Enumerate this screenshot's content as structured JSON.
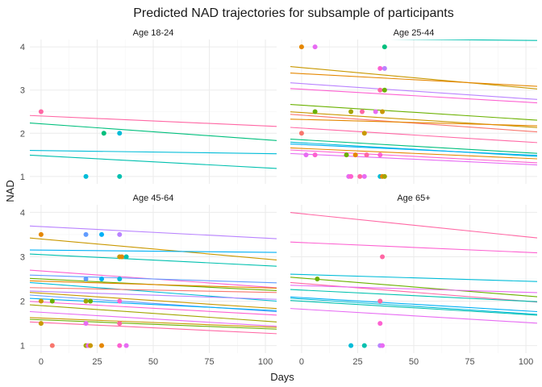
{
  "chart_data": {
    "type": "scatter",
    "title": "Predicted NAD trajectories for subsample of participants",
    "xlabel": "Days",
    "ylabel": "NAD",
    "xlim": [
      -5,
      105
    ],
    "ylim": [
      0.83,
      4.17
    ],
    "x_ticks": [
      0,
      25,
      50,
      75,
      100
    ],
    "y_ticks": [
      1,
      2,
      3,
      4
    ],
    "grid": true,
    "legend": "none",
    "palette": [
      "#F8766D",
      "#E58700",
      "#C99800",
      "#A3A500",
      "#6BB100",
      "#00BA38",
      "#00BF7D",
      "#00C0AF",
      "#00BCD8",
      "#00B0F6",
      "#619CFF",
      "#B983FF",
      "#E76BF3",
      "#FD61D1",
      "#FF67A4"
    ],
    "facets": [
      {
        "label": "Age 18-24",
        "lines": [
          {
            "color": "#FF67A4",
            "y0": 2.4,
            "y1": 2.17
          },
          {
            "color": "#00BF7D",
            "y0": 2.22,
            "y1": 1.85
          },
          {
            "color": "#00BCD8",
            "y0": 1.6,
            "y1": 1.53
          },
          {
            "color": "#00C0AF",
            "y0": 1.48,
            "y1": 1.2
          }
        ],
        "points": [
          {
            "x": 0,
            "y": 2.5,
            "color": "#FF67A4"
          },
          {
            "x": 28,
            "y": 2.0,
            "color": "#00BF7D"
          },
          {
            "x": 35,
            "y": 2.0,
            "color": "#00BCD8"
          },
          {
            "x": 20,
            "y": 1.0,
            "color": "#00BCD8"
          },
          {
            "x": 35,
            "y": 1.0,
            "color": "#00C0AF"
          }
        ]
      },
      {
        "label": "Age 25-44",
        "lines": [
          {
            "color": "#00C0AF",
            "y0": 4.2,
            "y1": 4.15
          },
          {
            "color": "#C99800",
            "y0": 3.52,
            "y1": 3.05
          },
          {
            "color": "#E58700",
            "y0": 3.38,
            "y1": 3.1
          },
          {
            "color": "#B983FF",
            "y0": 3.15,
            "y1": 2.8
          },
          {
            "color": "#FD61D1",
            "y0": 3.02,
            "y1": 2.72
          },
          {
            "color": "#6BB100",
            "y0": 2.65,
            "y1": 2.32
          },
          {
            "color": "#C99800",
            "y0": 2.48,
            "y1": 2.15
          },
          {
            "color": "#F8766D",
            "y0": 2.42,
            "y1": 2.05
          },
          {
            "color": "#E58700",
            "y0": 2.32,
            "y1": 2.18
          },
          {
            "color": "#FF67A4",
            "y0": 2.12,
            "y1": 1.8
          },
          {
            "color": "#00BF7D",
            "y0": 1.85,
            "y1": 1.55
          },
          {
            "color": "#00BCD8",
            "y0": 1.78,
            "y1": 1.48
          },
          {
            "color": "#00B0F6",
            "y0": 1.74,
            "y1": 1.5
          },
          {
            "color": "#E58700",
            "y0": 1.65,
            "y1": 1.42
          },
          {
            "color": "#FD61D1",
            "y0": 1.6,
            "y1": 1.33
          },
          {
            "color": "#E76BF3",
            "y0": 1.52,
            "y1": 1.28
          }
        ],
        "points": [
          {
            "x": 0,
            "y": 4.0,
            "color": "#E58700"
          },
          {
            "x": 6,
            "y": 4.0,
            "color": "#E76BF3"
          },
          {
            "x": 37,
            "y": 4.0,
            "color": "#00BF7D"
          },
          {
            "x": 35,
            "y": 3.5,
            "color": "#FD61D1"
          },
          {
            "x": 37,
            "y": 3.5,
            "color": "#B983FF"
          },
          {
            "x": 35,
            "y": 3.0,
            "color": "#FF67A4"
          },
          {
            "x": 37,
            "y": 3.0,
            "color": "#6BB100"
          },
          {
            "x": 6,
            "y": 2.5,
            "color": "#6BB100"
          },
          {
            "x": 22,
            "y": 2.5,
            "color": "#A3A500"
          },
          {
            "x": 27,
            "y": 2.5,
            "color": "#FF67A4"
          },
          {
            "x": 33,
            "y": 2.5,
            "color": "#E76BF3"
          },
          {
            "x": 36,
            "y": 2.5,
            "color": "#C99800"
          },
          {
            "x": 0,
            "y": 2.0,
            "color": "#F8766D"
          },
          {
            "x": 28,
            "y": 2.0,
            "color": "#C99800"
          },
          {
            "x": 2,
            "y": 1.5,
            "color": "#E76BF3"
          },
          {
            "x": 6,
            "y": 1.5,
            "color": "#FD61D1"
          },
          {
            "x": 20,
            "y": 1.5,
            "color": "#6BB100"
          },
          {
            "x": 24,
            "y": 1.5,
            "color": "#E58700"
          },
          {
            "x": 29,
            "y": 1.5,
            "color": "#FF67A4"
          },
          {
            "x": 35,
            "y": 1.5,
            "color": "#FD61D1"
          },
          {
            "x": 21,
            "y": 1.0,
            "color": "#E76BF3"
          },
          {
            "x": 22,
            "y": 1.0,
            "color": "#FD61D1"
          },
          {
            "x": 26,
            "y": 1.0,
            "color": "#FF67A4"
          },
          {
            "x": 28,
            "y": 1.0,
            "color": "#E76BF3"
          },
          {
            "x": 35,
            "y": 1.0,
            "color": "#00BCD8"
          },
          {
            "x": 36,
            "y": 1.0,
            "color": "#E58700"
          },
          {
            "x": 37,
            "y": 1.0,
            "color": "#A3A500"
          }
        ]
      },
      {
        "label": "Age 45-64",
        "lines": [
          {
            "color": "#B983FF",
            "y0": 3.68,
            "y1": 3.42
          },
          {
            "color": "#C99800",
            "y0": 3.4,
            "y1": 2.95
          },
          {
            "color": "#00B0F6",
            "y0": 3.15,
            "y1": 3.1
          },
          {
            "color": "#00C0AF",
            "y0": 3.05,
            "y1": 2.8
          },
          {
            "color": "#FD61D1",
            "y0": 2.68,
            "y1": 2.32
          },
          {
            "color": "#619CFF",
            "y0": 2.58,
            "y1": 2.42
          },
          {
            "color": "#6BB100",
            "y0": 2.5,
            "y1": 2.25
          },
          {
            "color": "#E58700",
            "y0": 2.45,
            "y1": 2.3
          },
          {
            "color": "#00BCD8",
            "y0": 2.4,
            "y1": 2.02
          },
          {
            "color": "#F8766D",
            "y0": 2.3,
            "y1": 2.2
          },
          {
            "color": "#B983FF",
            "y0": 2.22,
            "y1": 2.05
          },
          {
            "color": "#C99800",
            "y0": 2.18,
            "y1": 1.85
          },
          {
            "color": "#619CFF",
            "y0": 2.12,
            "y1": 1.78
          },
          {
            "color": "#00B0F6",
            "y0": 2.05,
            "y1": 1.8
          },
          {
            "color": "#FD61D1",
            "y0": 1.98,
            "y1": 1.7
          },
          {
            "color": "#A3A500",
            "y0": 1.9,
            "y1": 1.55
          },
          {
            "color": "#E76BF3",
            "y0": 1.75,
            "y1": 1.45
          },
          {
            "color": "#C99800",
            "y0": 1.62,
            "y1": 1.42
          },
          {
            "color": "#6BB100",
            "y0": 1.58,
            "y1": 1.38
          },
          {
            "color": "#FF67A4",
            "y0": 1.52,
            "y1": 1.28
          }
        ],
        "points": [
          {
            "x": 0,
            "y": 3.5,
            "color": "#E58700"
          },
          {
            "x": 20,
            "y": 3.5,
            "color": "#619CFF"
          },
          {
            "x": 27,
            "y": 3.5,
            "color": "#00B0F6"
          },
          {
            "x": 35,
            "y": 3.5,
            "color": "#B983FF"
          },
          {
            "x": 35,
            "y": 3.0,
            "color": "#C99800"
          },
          {
            "x": 36,
            "y": 3.0,
            "color": "#E58700"
          },
          {
            "x": 38,
            "y": 3.0,
            "color": "#00C0AF"
          },
          {
            "x": 20,
            "y": 2.5,
            "color": "#619CFF"
          },
          {
            "x": 27,
            "y": 2.5,
            "color": "#00B0F6"
          },
          {
            "x": 35,
            "y": 2.5,
            "color": "#00BCD8"
          },
          {
            "x": 0,
            "y": 2.0,
            "color": "#C99800"
          },
          {
            "x": 5,
            "y": 2.0,
            "color": "#6BB100"
          },
          {
            "x": 20,
            "y": 2.0,
            "color": "#A3A500"
          },
          {
            "x": 22,
            "y": 2.0,
            "color": "#6BB100"
          },
          {
            "x": 35,
            "y": 2.0,
            "color": "#FD61D1"
          },
          {
            "x": 0,
            "y": 1.5,
            "color": "#C99800"
          },
          {
            "x": 20,
            "y": 1.5,
            "color": "#E76BF3"
          },
          {
            "x": 35,
            "y": 1.5,
            "color": "#FF67A4"
          },
          {
            "x": 5,
            "y": 1.0,
            "color": "#F8766D"
          },
          {
            "x": 20,
            "y": 1.0,
            "color": "#A3A500"
          },
          {
            "x": 21,
            "y": 1.0,
            "color": "#E76BF3"
          },
          {
            "x": 22,
            "y": 1.0,
            "color": "#C99800"
          },
          {
            "x": 27,
            "y": 1.0,
            "color": "#E58700"
          },
          {
            "x": 35,
            "y": 1.0,
            "color": "#FD61D1"
          },
          {
            "x": 38,
            "y": 1.0,
            "color": "#E76BF3"
          }
        ]
      },
      {
        "label": "Age 65+",
        "lines": [
          {
            "color": "#FF67A4",
            "y0": 3.97,
            "y1": 3.45
          },
          {
            "color": "#FD61D1",
            "y0": 3.32,
            "y1": 3.1
          },
          {
            "color": "#00BCD8",
            "y0": 2.6,
            "y1": 2.45
          },
          {
            "color": "#6BB100",
            "y0": 2.52,
            "y1": 2.12
          },
          {
            "color": "#FF67A4",
            "y0": 2.4,
            "y1": 2.0
          },
          {
            "color": "#E76BF3",
            "y0": 2.35,
            "y1": 2.2
          },
          {
            "color": "#00C0AF",
            "y0": 2.25,
            "y1": 2.0
          },
          {
            "color": "#00B0F6",
            "y0": 2.08,
            "y1": 1.78
          },
          {
            "color": "#00BCD8",
            "y0": 2.05,
            "y1": 1.72
          },
          {
            "color": "#00C0AF",
            "y0": 2.0,
            "y1": 1.7
          },
          {
            "color": "#E76BF3",
            "y0": 1.82,
            "y1": 1.52
          }
        ],
        "points": [
          {
            "x": 36,
            "y": 3.0,
            "color": "#FF67A4"
          },
          {
            "x": 7,
            "y": 2.5,
            "color": "#6BB100"
          },
          {
            "x": 35,
            "y": 2.0,
            "color": "#FF67A4"
          },
          {
            "x": 35,
            "y": 1.5,
            "color": "#FD61D1"
          },
          {
            "x": 22,
            "y": 1.0,
            "color": "#00BCD8"
          },
          {
            "x": 28,
            "y": 1.0,
            "color": "#00C0AF"
          },
          {
            "x": 35,
            "y": 1.0,
            "color": "#B983FF"
          },
          {
            "x": 36,
            "y": 1.0,
            "color": "#E76BF3"
          }
        ]
      }
    ]
  }
}
